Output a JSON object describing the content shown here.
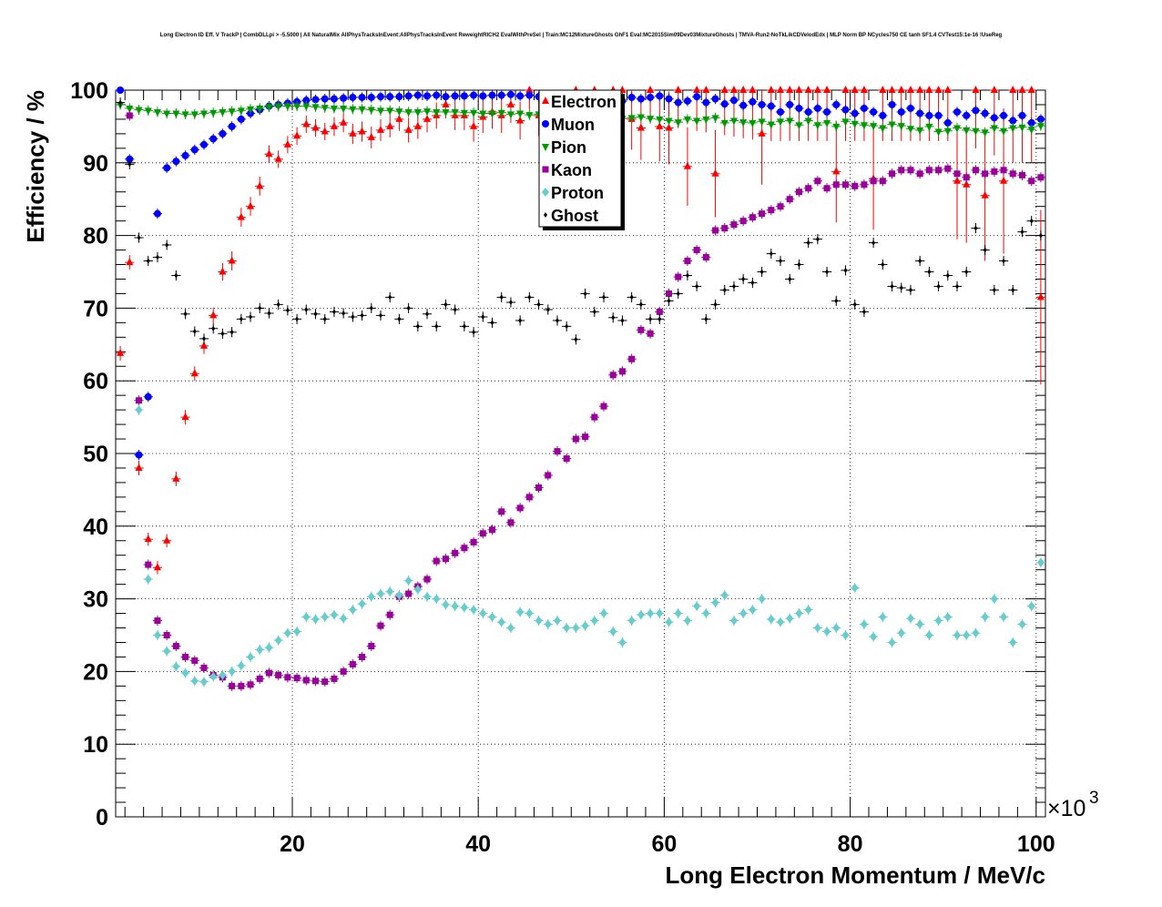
{
  "chart_data": {
    "type": "scatter",
    "title": "Long Electron ID Eff. V TrackP | CombDLLpi > -5.5000 | All NaturalMix AllPhysTracksInEvent:AllPhysTracksInEvent ReweightRICH2 EvalWithPreSel | Train:MC12MixtureGhosts GhF1 Eval:MC2015Sim09Dev03MixtureGhosts | TMVA-Run2-NoTkLikCDVelodEdx | MLP Norm BP NCycles750 CE tanh SF1.4 CVTest15:1e-16 !UseReg",
    "xlabel": "Long Electron Momentum / MeV/c",
    "ylabel": "Efficiency / %",
    "x_multiplier": "×10",
    "x_multiplier_exp": "3",
    "xlim": [
      1000,
      101000
    ],
    "ylim": [
      0,
      100
    ],
    "xticks": [
      20,
      40,
      60,
      80,
      100
    ],
    "yticks": [
      0,
      10,
      20,
      30,
      40,
      50,
      60,
      70,
      80,
      90,
      100
    ],
    "grid": true,
    "legend_position": "top-center",
    "x": [
      1.5,
      2.5,
      3.5,
      4.5,
      5.5,
      6.5,
      7.5,
      8.5,
      9.5,
      10.5,
      11.5,
      12.5,
      13.5,
      14.5,
      15.5,
      16.5,
      17.5,
      18.5,
      19.5,
      20.5,
      21.5,
      22.5,
      23.5,
      24.5,
      25.5,
      26.5,
      27.5,
      28.5,
      29.5,
      30.5,
      31.5,
      32.5,
      33.5,
      34.5,
      35.5,
      36.5,
      37.5,
      38.5,
      39.5,
      40.5,
      41.5,
      42.5,
      43.5,
      44.5,
      45.5,
      46.5,
      47.5,
      48.5,
      49.5,
      50.5,
      51.5,
      52.5,
      53.5,
      54.5,
      55.5,
      56.5,
      57.5,
      58.5,
      59.5,
      60.5,
      61.5,
      62.5,
      63.5,
      64.5,
      65.5,
      66.5,
      67.5,
      68.5,
      69.5,
      70.5,
      71.5,
      72.5,
      73.5,
      74.5,
      75.5,
      76.5,
      77.5,
      78.5,
      79.5,
      80.5,
      81.5,
      82.5,
      83.5,
      84.5,
      85.5,
      86.5,
      87.5,
      88.5,
      89.5,
      90.5,
      91.5,
      92.5,
      93.5,
      94.5,
      95.5,
      96.5,
      97.5,
      98.5,
      99.5,
      100.5
    ],
    "series": [
      {
        "name": "Electron",
        "color": "#ff0000",
        "marker": "triangle",
        "values": [
          63.8,
          76.3,
          48,
          38.2,
          34.3,
          38,
          46.5,
          55,
          61,
          64.8,
          69,
          75,
          76.5,
          82.5,
          84,
          86.8,
          91.2,
          90.5,
          92.5,
          93.7,
          95.3,
          94.8,
          94.3,
          95,
          95.5,
          94,
          94.3,
          93.5,
          94.5,
          95,
          96,
          94.5,
          95,
          96,
          96.5,
          98,
          96.5,
          96.5,
          95,
          96.3,
          97,
          96.5,
          98,
          95.8,
          100,
          96.5,
          96,
          98,
          95.5,
          100,
          96.3,
          100,
          95.5,
          100,
          100,
          96,
          94.8,
          100,
          95,
          94.8,
          100,
          89.5,
          100,
          100,
          88.5,
          100,
          100,
          100,
          100,
          94,
          100,
          100,
          100,
          100,
          100,
          100,
          100,
          88.8,
          100,
          100,
          100,
          87.8,
          100,
          100,
          100,
          100,
          100,
          100,
          100,
          100,
          87.5,
          87,
          100,
          85.5,
          100,
          87.5,
          100,
          100,
          100,
          71.5
        ],
        "errors": [
          1,
          1,
          1,
          0.9,
          0.9,
          0.9,
          1,
          1,
          1,
          1.1,
          1.1,
          1.2,
          1.3,
          1.3,
          1.3,
          1.3,
          1.2,
          1.2,
          1.2,
          1.2,
          1.2,
          1.2,
          1.2,
          1.3,
          1.3,
          1.4,
          1.4,
          1.5,
          1.5,
          1.5,
          1.6,
          1.7,
          1.7,
          1.8,
          1.8,
          1.9,
          2,
          2,
          2.1,
          2.2,
          2.3,
          2.4,
          2.5,
          2.6,
          2.7,
          2.8,
          3,
          3,
          3.2,
          3.4,
          3.5,
          3.7,
          3.9,
          4,
          4,
          4.2,
          4.4,
          4.6,
          4.8,
          5,
          5.2,
          5.4,
          5.6,
          5.8,
          6,
          6.2,
          6.4,
          6.6,
          6.8,
          7,
          7,
          7,
          7,
          7,
          7,
          7,
          7,
          7,
          7,
          7,
          7,
          7,
          7,
          7,
          7,
          7,
          7,
          7,
          7,
          7,
          8,
          8,
          8,
          9,
          9,
          10,
          10,
          10,
          10,
          12
        ]
      },
      {
        "name": "Muon",
        "color": "#0000ff",
        "marker": "circle",
        "values": [
          100,
          90.5,
          49.8,
          57.8,
          83,
          89.3,
          90.2,
          91,
          91.8,
          92.5,
          93.3,
          94,
          95,
          96,
          96.8,
          97.3,
          97.8,
          98,
          98.2,
          98.4,
          98.6,
          98.7,
          98.8,
          98.8,
          98.9,
          99,
          99,
          99,
          99.1,
          99.1,
          99.1,
          99.2,
          99.3,
          99.2,
          99.3,
          99.1,
          99.2,
          99.2,
          99.3,
          99.2,
          99.3,
          99.3,
          99.4,
          99.2,
          99.3,
          99.1,
          99.2,
          99.3,
          99,
          99.1,
          99,
          98.8,
          99.1,
          99,
          98.5,
          99,
          98.8,
          99,
          99.2,
          98.8,
          98.3,
          98.5,
          99.1,
          98.3,
          98.8,
          98.1,
          98.6,
          97.9,
          98.4,
          98,
          97.8,
          97,
          98,
          97.5,
          97,
          97.5,
          97,
          98,
          97.3,
          96.8,
          97.5,
          97,
          96.5,
          98,
          97,
          97.5,
          96.8,
          96.5,
          96.5,
          95.5,
          97,
          96.5,
          97.2,
          96.8,
          96.2,
          96.5,
          95.8,
          96.5,
          95.5,
          96
        ]
      },
      {
        "name": "Pion",
        "color": "#009900",
        "marker": "triangle-down",
        "values": [
          98,
          97.5,
          97.3,
          97.2,
          97,
          96.8,
          96.8,
          96.7,
          96.7,
          96.8,
          96.9,
          97,
          97.1,
          97.2,
          97.4,
          97.5,
          97.7,
          97.8,
          97.8,
          97.8,
          97.8,
          97.7,
          97.6,
          97.5,
          97.5,
          97.4,
          97.4,
          97.3,
          97.2,
          97.2,
          97.1,
          97,
          97,
          97.1,
          97,
          97,
          97,
          96.9,
          96.9,
          96.8,
          96.8,
          96.9,
          96.7,
          96.8,
          96.6,
          96.7,
          96.5,
          96.5,
          96.6,
          96.4,
          96.5,
          96.3,
          96.4,
          96.3,
          96.1,
          96.2,
          96.3,
          96.1,
          96,
          95.8,
          95.6,
          96,
          95.8,
          96,
          96.2,
          95.5,
          95.8,
          95.6,
          95.5,
          95.7,
          95.3,
          95.7,
          95.8,
          95.2,
          95.8,
          95.2,
          95.5,
          95,
          95.7,
          95.4,
          95.2,
          95.1,
          94.8,
          95.3,
          95.1,
          94.7,
          94.5,
          95,
          94.3,
          94.4,
          94.8,
          94.5,
          94.4,
          94.2,
          94.8,
          94.4,
          94.8,
          94.9,
          94.6,
          95.1
        ]
      },
      {
        "name": "Kaon",
        "color": "#990099",
        "marker": "square",
        "values": [
          null,
          96.5,
          57.3,
          34.7,
          27,
          25,
          23.5,
          22,
          21.5,
          20.5,
          19.5,
          19.2,
          18,
          18,
          18.2,
          19,
          19.8,
          19.5,
          19.2,
          19.1,
          18.8,
          18.7,
          18.6,
          19,
          20,
          21,
          22,
          23.5,
          26.3,
          27.8,
          30.3,
          30.7,
          31.7,
          32.7,
          35.2,
          35.5,
          36.3,
          37,
          37.8,
          39,
          39.5,
          42,
          40.5,
          42.5,
          44,
          45.3,
          47,
          50.3,
          49.3,
          52,
          52.3,
          55,
          56.5,
          60.8,
          61.3,
          63,
          67,
          66.5,
          69.5,
          72,
          74.3,
          76.5,
          78,
          77,
          80.7,
          81,
          81.5,
          82,
          82.5,
          83,
          83.5,
          84,
          85,
          86,
          86.5,
          87.5,
          86.5,
          87,
          87,
          86.8,
          87,
          87.5,
          87.5,
          88.5,
          89,
          89,
          88.5,
          89,
          89,
          89.2,
          88.5,
          88,
          89,
          88.5,
          88.8,
          89,
          88.5,
          88.3,
          87.5,
          88
        ]
      },
      {
        "name": "Proton",
        "color": "#66cccc",
        "marker": "diamond",
        "values": [
          null,
          null,
          56,
          32.7,
          25,
          22.8,
          20.7,
          19.8,
          18.7,
          18.6,
          19.3,
          19.5,
          20,
          20.8,
          22,
          23,
          23.3,
          24.3,
          25.3,
          25.5,
          27.5,
          27.2,
          27.5,
          27.8,
          27.3,
          28.5,
          29.3,
          30.3,
          30.7,
          31,
          30.5,
          32.5,
          31.3,
          30.3,
          30,
          29.2,
          29,
          28.8,
          28.5,
          28,
          27.5,
          26.8,
          26,
          28.2,
          28,
          27,
          26.5,
          27,
          26,
          26,
          26.3,
          27,
          28,
          25.5,
          24,
          27,
          27.8,
          28,
          28,
          26.8,
          28,
          27,
          29,
          28,
          29.5,
          30.5,
          27,
          28,
          28.5,
          30,
          27.2,
          26.8,
          27.3,
          28,
          28.5,
          26,
          25.5,
          26,
          25,
          31.5,
          26.5,
          24.8,
          27.5,
          24,
          25.3,
          27.3,
          26.5,
          25,
          27,
          27.5,
          25,
          25,
          25.3,
          27.5,
          30,
          27.5,
          24,
          26.5,
          29,
          35
        ]
      },
      {
        "name": "Ghost",
        "color": "#000000",
        "marker": "cross",
        "values": [
          98.3,
          89.8,
          79.7,
          76.5,
          77,
          78.7,
          74.5,
          69.2,
          66.8,
          65.8,
          67.2,
          66.5,
          66.7,
          68.5,
          68.8,
          70,
          69.3,
          70.5,
          69.7,
          68.5,
          69.8,
          69.2,
          68.5,
          69.5,
          69.3,
          68.8,
          69,
          70,
          69,
          71.5,
          68.5,
          70,
          67.5,
          69.2,
          67.5,
          70.5,
          69.8,
          67.5,
          66.7,
          68.8,
          68,
          71.5,
          70.8,
          68.3,
          71.5,
          70.5,
          69.8,
          68.3,
          67.5,
          65.7,
          72,
          69.5,
          71.5,
          68.7,
          68.3,
          71.5,
          70.5,
          68.5,
          68.5,
          71,
          72,
          74.5,
          73,
          68.5,
          70.5,
          72.5,
          73,
          74,
          73.5,
          75,
          77.5,
          76.5,
          74,
          76,
          79,
          79.5,
          75,
          71,
          75.2,
          70.5,
          69.5,
          79,
          76,
          73,
          72.8,
          72.5,
          76.5,
          75,
          73,
          74.5,
          73,
          75,
          81,
          78,
          72.5,
          76.5,
          72.5,
          80.5,
          82,
          80
        ]
      }
    ]
  }
}
